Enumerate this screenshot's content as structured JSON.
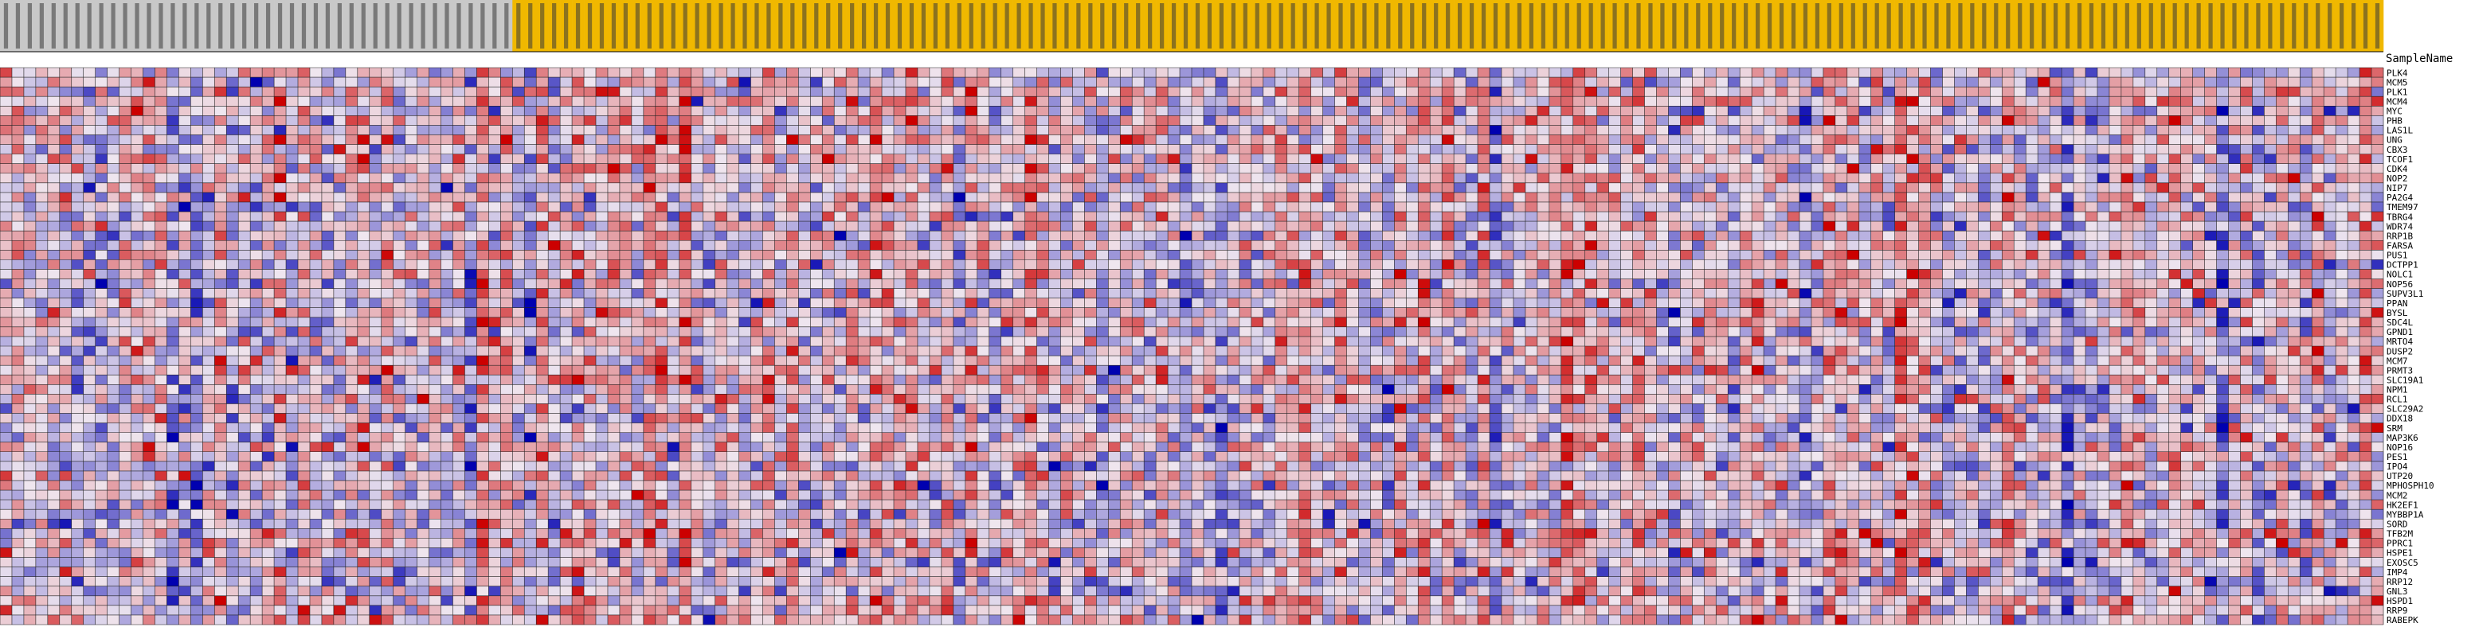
{
  "chart_data": {
    "type": "heatmap",
    "row_header": "SampleName",
    "column_count": 200,
    "group_split_index": 43,
    "group_colors": [
      "#c8c8c8",
      "#f0b800"
    ],
    "rows": [
      "PLK4",
      "MCM5",
      "PLK1",
      "MCM4",
      "MYC",
      "PHB",
      "LAS1L",
      "UNG",
      "CBX3",
      "TCOF1",
      "CDK4",
      "NOP2",
      "NIP7",
      "PA2G4",
      "TMEM97",
      "TBRG4",
      "WDR74",
      "RRP1B",
      "FARSA",
      "PUS1",
      "DCTPP1",
      "NOLC1",
      "NOP56",
      "SUPV3L1",
      "PPAN",
      "BYSL",
      "SDC4L",
      "GPND1",
      "MRTO4",
      "DUSP2",
      "MCM7",
      "PRMT3",
      "SLC19A1",
      "NPM1",
      "RCL1",
      "SLC29A2",
      "DDX18",
      "SRM",
      "MAP3K6",
      "NOP16",
      "PES1",
      "IPO4",
      "UTP20",
      "MPHOSPH10",
      "MCM2",
      "HK2EF1",
      "MYBBP1A",
      "SORD",
      "TFB2M",
      "PPRC1",
      "HSPE1",
      "EXOSC5",
      "IMP4",
      "RRP12",
      "GNL3",
      "HSPD1",
      "RRP9",
      "RABEPK"
    ],
    "color_scale": {
      "low": "#0000b0",
      "mid": "#efe6ef",
      "high": "#cc0000"
    },
    "value_range": [
      -3,
      3
    ],
    "grid": true
  }
}
